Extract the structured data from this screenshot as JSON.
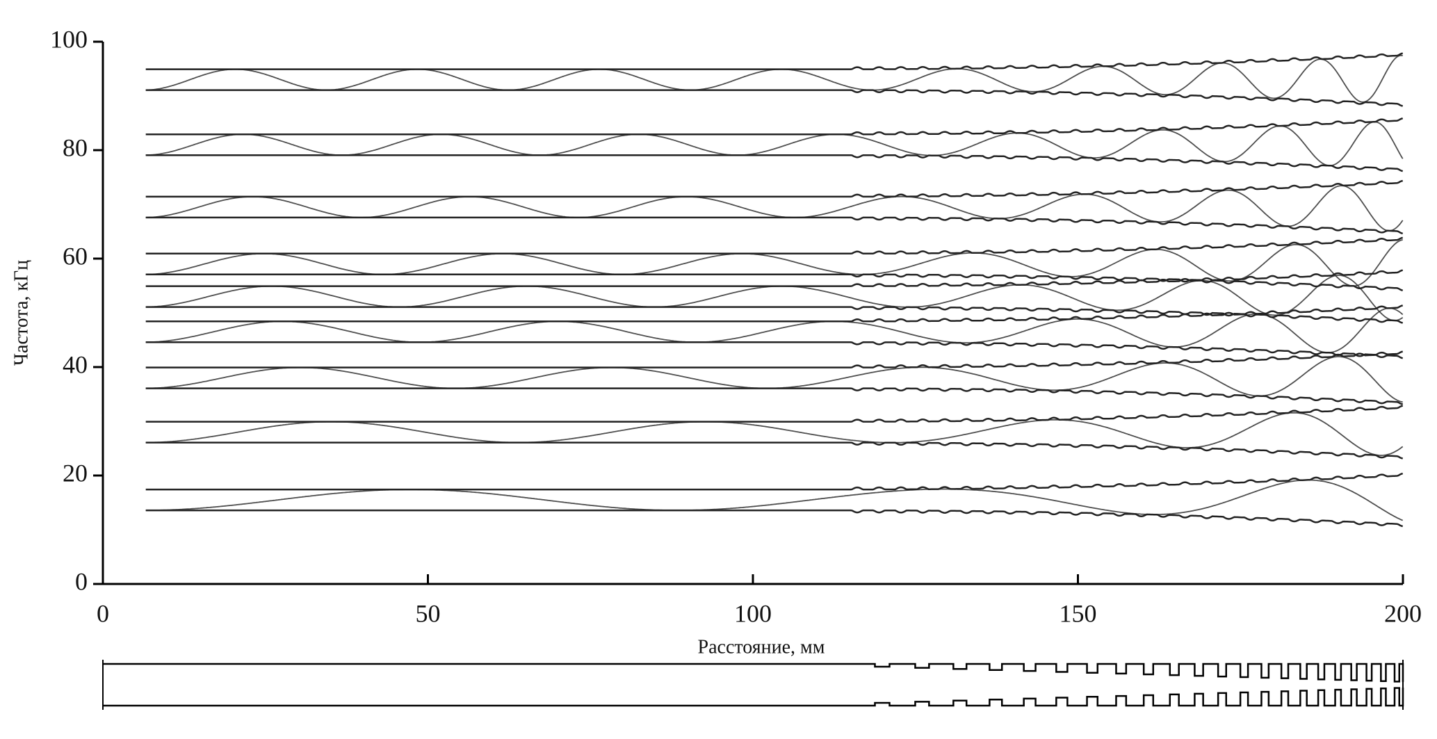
{
  "chart_data": {
    "type": "line",
    "xlabel": "Расстояние, мм",
    "ylabel": "Частота, кГц",
    "xlim": [
      0,
      200
    ],
    "ylim": [
      0,
      100
    ],
    "xticks": [
      0,
      50,
      100,
      150,
      200
    ],
    "yticks": [
      0,
      20,
      40,
      60,
      80,
      100
    ],
    "mode_frequencies": [
      93,
      81,
      69.5,
      59,
      53,
      46.5,
      38,
      28,
      15.5
    ],
    "color": "#222222"
  }
}
